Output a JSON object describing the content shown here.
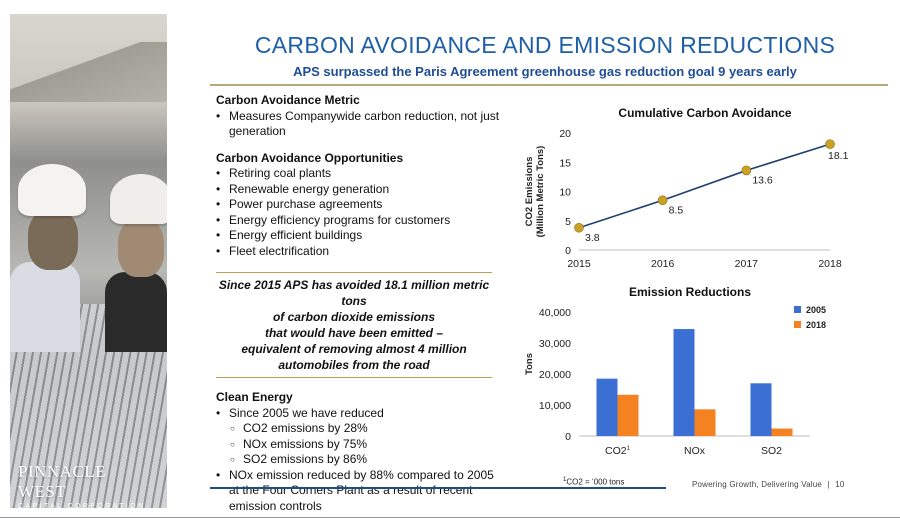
{
  "title": "CARBON AVOIDANCE AND EMISSION REDUCTIONS",
  "subtitle": "APS surpassed the Paris Agreement greenhouse gas reduction goal 9 years early",
  "logo": {
    "name": "PINNACLE WEST",
    "sub": "CAPITAL CORPORATION"
  },
  "metric": {
    "heading": "Carbon Avoidance Metric",
    "items": [
      "Measures Companywide carbon reduction, not just generation"
    ]
  },
  "opportunities": {
    "heading": "Carbon Avoidance Opportunities",
    "items": [
      "Retiring coal plants",
      "Renewable energy generation",
      "Power purchase agreements",
      "Energy efficiency programs for customers",
      "Energy efficient buildings",
      "Fleet electrification"
    ]
  },
  "quote": [
    "Since 2015 APS has avoided 18.1 million metric tons",
    "of carbon dioxide emissions",
    "that would have been emitted –",
    "equivalent of removing almost 4 million",
    "automobiles from the road"
  ],
  "clean_energy": {
    "heading": "Clean Energy",
    "intro": "Since 2005 we have reduced",
    "sub_items": [
      "CO2 emissions by 28%",
      "NOx emissions by 75%",
      "SO2 emissions by 86%"
    ],
    "last": "NOx emission reduced by 88% compared to 2005 at the Four Corners Plant as a result of recent emission controls"
  },
  "chart_data": [
    {
      "type": "line",
      "title": "Cumulative Carbon Avoidance",
      "ylabel": [
        "CO2 Emissions",
        "(Million Metric Tons)"
      ],
      "x": [
        "2015",
        "2016",
        "2017",
        "2018"
      ],
      "series": [
        {
          "values": [
            3.8,
            8.5,
            13.6,
            18.1
          ],
          "labels": [
            "3.8",
            "8.5",
            "13.6",
            "18.1"
          ]
        }
      ],
      "ylim": [
        0,
        20
      ],
      "yticks": [
        0,
        5,
        10,
        15,
        20
      ],
      "ytick_labels": [
        "0",
        "5",
        "10",
        "15",
        "20"
      ],
      "line_color": "#1f3f6e",
      "marker_color": "#c9a227",
      "grid": false
    },
    {
      "type": "bar",
      "title": "Emission Reductions",
      "ylabel": "Tons",
      "categories": [
        "CO2",
        "NOx",
        "SO2"
      ],
      "category_superscripts": [
        "1",
        "",
        ""
      ],
      "series": [
        {
          "name": "2005",
          "values": [
            18500,
            34500,
            17000
          ],
          "color": "#3b6fd4"
        },
        {
          "name": "2018",
          "values": [
            13300,
            8600,
            2400
          ],
          "color": "#f58220"
        }
      ],
      "ylim": [
        0,
        40000
      ],
      "yticks": [
        0,
        10000,
        20000,
        30000,
        40000
      ],
      "ytick_labels": [
        "0",
        "10,000",
        "20,000",
        "30,000",
        "40,000"
      ],
      "legend": "top-right",
      "grid": false
    }
  ],
  "footnote": {
    "sup": "1",
    "text": "CO2 = ’000 tons"
  },
  "footer": {
    "tagline": "Powering Growth, Delivering Value",
    "separator": "|",
    "page": "10"
  }
}
